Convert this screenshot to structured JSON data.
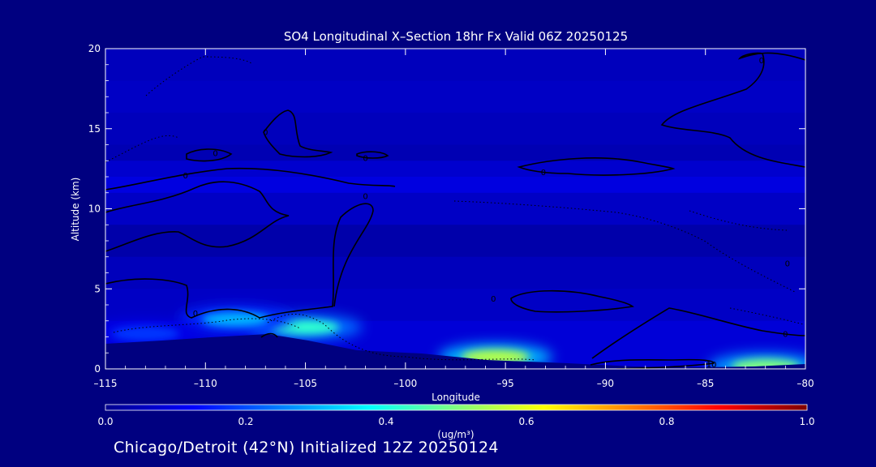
{
  "chart_data": {
    "type": "heatmap",
    "title": "SO4 Longitudinal X–Section 18hr  Fx Valid 06Z 20250125",
    "xlabel": "Longitude",
    "ylabel": "Altitude (km)",
    "xlim": [
      -115,
      -80
    ],
    "ylim": [
      0,
      20
    ],
    "x_ticks": [
      -115,
      -110,
      -105,
      -100,
      -95,
      -90,
      -85,
      -80
    ],
    "x_tick_labels": [
      "–115",
      "–110",
      "–105",
      "–100",
      "–95",
      "–90",
      "–85",
      "–80"
    ],
    "y_ticks": [
      0,
      5,
      10,
      15,
      20
    ],
    "y_tick_labels": [
      "0",
      "5",
      "10",
      "15",
      "20"
    ],
    "colorbar": {
      "label": "(ug/m³)",
      "range": [
        0.0,
        1.0
      ],
      "ticks": [
        0.0,
        0.2,
        0.4,
        0.6,
        0.8,
        1.0
      ],
      "tick_labels": [
        "0.0",
        "0.2",
        "0.4",
        "0.6",
        "0.8",
        "1.0"
      ]
    },
    "concentration_bands": [
      {
        "alt": 20,
        "value": 0.05
      },
      {
        "alt": 18,
        "value": 0.06
      },
      {
        "alt": 16,
        "value": 0.05
      },
      {
        "alt": 14,
        "value": 0.04
      },
      {
        "alt": 13,
        "value": 0.07
      },
      {
        "alt": 12,
        "value": 0.09
      },
      {
        "alt": 11,
        "value": 0.06
      },
      {
        "alt": 9,
        "value": 0.03
      },
      {
        "alt": 7,
        "value": 0.05
      },
      {
        "alt": 5,
        "value": 0.06
      },
      {
        "alt": 3,
        "value": 0.08
      }
    ],
    "hotspots": [
      {
        "lon": -95.5,
        "alt": 0.75,
        "value": 0.55
      },
      {
        "lon": -105,
        "alt": 2.6,
        "value": 0.42
      },
      {
        "lon": -108.5,
        "alt": 3.1,
        "value": 0.3
      },
      {
        "lon": -82,
        "alt": 0.15,
        "value": 0.5
      },
      {
        "lon": -113,
        "alt": 2.2,
        "value": 0.18
      }
    ],
    "contour_labels": [
      {
        "lon": -109.5,
        "alt": 13.5,
        "text": "0"
      },
      {
        "lon": -111,
        "alt": 12.1,
        "text": "0"
      },
      {
        "lon": -107,
        "alt": 14.8,
        "text": "0"
      },
      {
        "lon": -102,
        "alt": 13.2,
        "text": "0"
      },
      {
        "lon": -102,
        "alt": 10.8,
        "text": "0"
      },
      {
        "lon": -93.1,
        "alt": 12.3,
        "text": "0"
      },
      {
        "lon": -110.5,
        "alt": 3.5,
        "text": "0"
      },
      {
        "lon": -95.6,
        "alt": 4.4,
        "text": "0"
      },
      {
        "lon": -84.7,
        "alt": 0.3,
        "text": "10"
      },
      {
        "lon": -82.2,
        "alt": 19.3,
        "text": "0"
      },
      {
        "lon": -80.9,
        "alt": 6.6,
        "text": "0"
      },
      {
        "lon": -81,
        "alt": 2.2,
        "text": "0"
      }
    ]
  },
  "footer": {
    "text": "Chicago/Detroit (42°N) Initialized 12Z 20250124"
  },
  "colors": {
    "background": "#000080",
    "foreground": "#ffffff"
  }
}
